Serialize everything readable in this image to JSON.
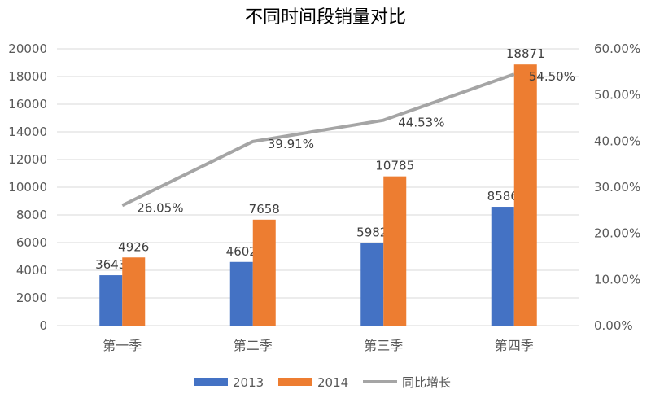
{
  "chart_data": {
    "type": "bar",
    "title": "不同时间段销量对比",
    "categories": [
      "第一季",
      "第二季",
      "第三季",
      "第四季"
    ],
    "series": [
      {
        "name": "2013",
        "type": "bar",
        "axis": "left",
        "color": "#4472C4",
        "values": [
          3643,
          4602,
          5982,
          8586
        ]
      },
      {
        "name": "2014",
        "type": "bar",
        "axis": "left",
        "color": "#ED7D31",
        "values": [
          4926,
          7658,
          10785,
          18871
        ]
      },
      {
        "name": "同比增长",
        "type": "line",
        "axis": "right",
        "color": "#A5A5A5",
        "values": [
          26.05,
          39.91,
          44.53,
          54.5
        ],
        "labels": [
          "26.05%",
          "39.91%",
          "44.53%",
          "54.50%"
        ]
      }
    ],
    "y_left": {
      "min": 0,
      "max": 20000,
      "step": 2000,
      "tick_labels": [
        "0",
        "2000",
        "4000",
        "6000",
        "8000",
        "10000",
        "12000",
        "14000",
        "16000",
        "18000",
        "20000"
      ]
    },
    "y_right": {
      "min": 0,
      "max": 60,
      "step": 10,
      "tick_labels": [
        "0.00%",
        "10.00%",
        "20.00%",
        "30.00%",
        "40.00%",
        "50.00%",
        "60.00%"
      ]
    },
    "grid": true,
    "legend": "bottom"
  }
}
